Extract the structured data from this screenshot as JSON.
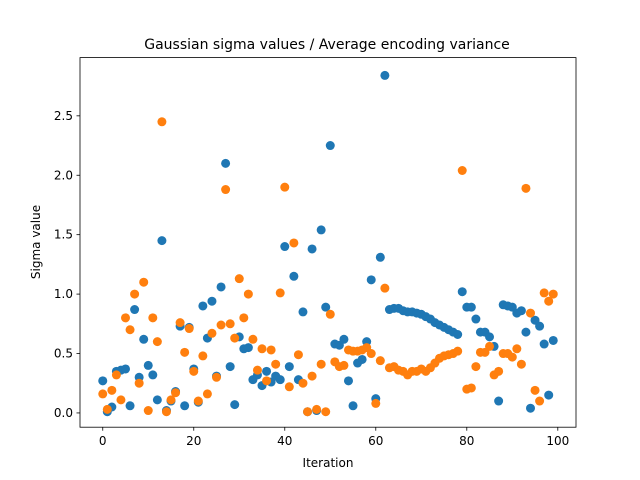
{
  "chart_data": {
    "type": "scatter",
    "title": "Gaussian sigma values / Average encoding variance",
    "xlabel": "Iteration",
    "ylabel": "Sigma value",
    "xlim": [
      -5,
      104
    ],
    "ylim": [
      -0.12,
      2.99
    ],
    "xticks": [
      0,
      20,
      40,
      60,
      80,
      100
    ],
    "yticks": [
      0.0,
      0.5,
      1.0,
      1.5,
      2.0,
      2.5
    ],
    "ytick_labels": [
      "0.0",
      "0.5",
      "1.0",
      "1.5",
      "2.0",
      "2.5"
    ],
    "grid": false,
    "legend": false,
    "colors": [
      "#1f77b4",
      "#ff7f0e"
    ],
    "series": [
      {
        "x": [
          0,
          1,
          2,
          3,
          4,
          5,
          6,
          7,
          8,
          9,
          10,
          11,
          12,
          13,
          14,
          15,
          16,
          17,
          18,
          19,
          20,
          21,
          22,
          23,
          24,
          25,
          26,
          27,
          28,
          29,
          30,
          31,
          32,
          33,
          34,
          35,
          36,
          37,
          38,
          39,
          40,
          41,
          42,
          43,
          44,
          45,
          46,
          47,
          48,
          49,
          50,
          51,
          52,
          53,
          54,
          55,
          56,
          57,
          58,
          59,
          60,
          61,
          62,
          63,
          64,
          65,
          66,
          67,
          68,
          69,
          70,
          71,
          72,
          73,
          74,
          75,
          76,
          77,
          78,
          79,
          80,
          81,
          82,
          83,
          84,
          85,
          86,
          87,
          88,
          89,
          90,
          91,
          92,
          93,
          94,
          95,
          96,
          97,
          98,
          99
        ],
        "y": [
          0.27,
          0.01,
          0.05,
          0.35,
          0.36,
          0.37,
          0.06,
          0.87,
          0.3,
          0.62,
          0.4,
          0.32,
          0.11,
          1.45,
          0.02,
          0.1,
          0.18,
          0.73,
          0.06,
          0.72,
          0.37,
          0.09,
          0.9,
          0.63,
          0.94,
          0.31,
          1.06,
          2.1,
          0.39,
          0.07,
          0.64,
          0.54,
          0.55,
          0.28,
          0.32,
          0.23,
          0.35,
          0.26,
          0.31,
          0.28,
          1.4,
          0.39,
          1.15,
          0.28,
          0.85,
          0.01,
          1.38,
          0.02,
          1.54,
          0.89,
          2.25,
          0.58,
          0.57,
          0.62,
          0.27,
          0.06,
          0.42,
          0.45,
          0.6,
          1.12,
          0.12,
          1.31,
          2.84,
          0.87,
          0.88,
          0.88,
          0.86,
          0.85,
          0.85,
          0.84,
          0.83,
          0.81,
          0.79,
          0.76,
          0.74,
          0.72,
          0.7,
          0.68,
          0.66,
          1.02,
          0.89,
          0.89,
          0.79,
          0.68,
          0.68,
          0.64,
          0.56,
          0.1,
          0.91,
          0.9,
          0.89,
          0.84,
          0.86,
          0.68,
          0.04,
          0.78,
          0.73,
          0.58,
          0.15,
          0.61
        ]
      },
      {
        "x": [
          0,
          1,
          2,
          3,
          4,
          5,
          6,
          7,
          8,
          9,
          10,
          11,
          12,
          13,
          14,
          15,
          16,
          17,
          18,
          19,
          20,
          21,
          22,
          23,
          24,
          25,
          26,
          27,
          28,
          29,
          30,
          31,
          32,
          33,
          34,
          35,
          36,
          37,
          38,
          39,
          40,
          41,
          42,
          43,
          44,
          45,
          46,
          47,
          48,
          49,
          50,
          51,
          52,
          53,
          54,
          55,
          56,
          57,
          58,
          59,
          60,
          61,
          62,
          63,
          64,
          65,
          66,
          67,
          68,
          69,
          70,
          71,
          72,
          73,
          74,
          75,
          76,
          77,
          78,
          79,
          80,
          81,
          82,
          83,
          84,
          85,
          86,
          87,
          88,
          89,
          90,
          91,
          92,
          93,
          94,
          95,
          96,
          97,
          98,
          99
        ],
        "y": [
          0.16,
          0.03,
          0.19,
          0.32,
          0.11,
          0.8,
          0.7,
          1.0,
          0.25,
          1.1,
          0.02,
          0.8,
          0.6,
          2.45,
          0.01,
          0.11,
          0.17,
          0.76,
          0.51,
          0.71,
          0.35,
          0.1,
          0.48,
          0.16,
          0.67,
          0.3,
          0.74,
          1.88,
          0.75,
          0.63,
          1.13,
          0.8,
          1.0,
          0.62,
          0.36,
          0.54,
          0.27,
          0.53,
          0.41,
          1.01,
          1.9,
          0.22,
          1.43,
          0.49,
          0.25,
          0.01,
          0.31,
          0.03,
          0.41,
          0.01,
          0.83,
          0.43,
          0.39,
          0.4,
          0.53,
          0.52,
          0.52,
          0.53,
          0.55,
          0.5,
          0.08,
          0.44,
          1.05,
          0.38,
          0.39,
          0.36,
          0.35,
          0.32,
          0.35,
          0.35,
          0.37,
          0.35,
          0.38,
          0.42,
          0.46,
          0.48,
          0.49,
          0.5,
          0.52,
          2.04,
          0.2,
          0.21,
          0.39,
          0.51,
          0.51,
          0.56,
          0.32,
          0.35,
          0.5,
          0.5,
          0.47,
          0.54,
          0.41,
          1.89,
          0.84,
          0.19,
          0.1,
          1.01,
          0.94,
          1.0
        ]
      }
    ]
  }
}
